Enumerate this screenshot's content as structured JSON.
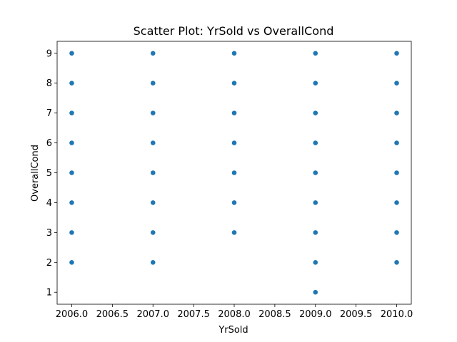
{
  "chart_data": {
    "type": "scatter",
    "title": "Scatter Plot: YrSold vs OverallCond",
    "xlabel": "YrSold",
    "ylabel": "OverallCond",
    "xlim": [
      2005.82,
      2010.18
    ],
    "ylim": [
      0.6,
      9.4
    ],
    "xticks": [
      2006.0,
      2006.5,
      2007.0,
      2007.5,
      2008.0,
      2008.5,
      2009.0,
      2009.5,
      2010.0
    ],
    "xtick_labels": [
      "2006.0",
      "2006.5",
      "2007.0",
      "2007.5",
      "2008.0",
      "2008.5",
      "2009.0",
      "2009.5",
      "2010.0"
    ],
    "yticks": [
      1,
      2,
      3,
      4,
      5,
      6,
      7,
      8,
      9
    ],
    "ytick_labels": [
      "1",
      "2",
      "3",
      "4",
      "5",
      "6",
      "7",
      "8",
      "9"
    ],
    "grid": false,
    "marker_color": "#1f77b4",
    "points": [
      {
        "x": 2006,
        "y": 2
      },
      {
        "x": 2006,
        "y": 3
      },
      {
        "x": 2006,
        "y": 4
      },
      {
        "x": 2006,
        "y": 5
      },
      {
        "x": 2006,
        "y": 6
      },
      {
        "x": 2006,
        "y": 7
      },
      {
        "x": 2006,
        "y": 8
      },
      {
        "x": 2006,
        "y": 9
      },
      {
        "x": 2007,
        "y": 2
      },
      {
        "x": 2007,
        "y": 3
      },
      {
        "x": 2007,
        "y": 4
      },
      {
        "x": 2007,
        "y": 5
      },
      {
        "x": 2007,
        "y": 6
      },
      {
        "x": 2007,
        "y": 7
      },
      {
        "x": 2007,
        "y": 8
      },
      {
        "x": 2007,
        "y": 9
      },
      {
        "x": 2008,
        "y": 3
      },
      {
        "x": 2008,
        "y": 4
      },
      {
        "x": 2008,
        "y": 5
      },
      {
        "x": 2008,
        "y": 6
      },
      {
        "x": 2008,
        "y": 7
      },
      {
        "x": 2008,
        "y": 8
      },
      {
        "x": 2008,
        "y": 9
      },
      {
        "x": 2009,
        "y": 1
      },
      {
        "x": 2009,
        "y": 2
      },
      {
        "x": 2009,
        "y": 3
      },
      {
        "x": 2009,
        "y": 4
      },
      {
        "x": 2009,
        "y": 5
      },
      {
        "x": 2009,
        "y": 6
      },
      {
        "x": 2009,
        "y": 7
      },
      {
        "x": 2009,
        "y": 8
      },
      {
        "x": 2009,
        "y": 9
      },
      {
        "x": 2010,
        "y": 2
      },
      {
        "x": 2010,
        "y": 3
      },
      {
        "x": 2010,
        "y": 4
      },
      {
        "x": 2010,
        "y": 5
      },
      {
        "x": 2010,
        "y": 6
      },
      {
        "x": 2010,
        "y": 7
      },
      {
        "x": 2010,
        "y": 8
      },
      {
        "x": 2010,
        "y": 9
      }
    ]
  }
}
